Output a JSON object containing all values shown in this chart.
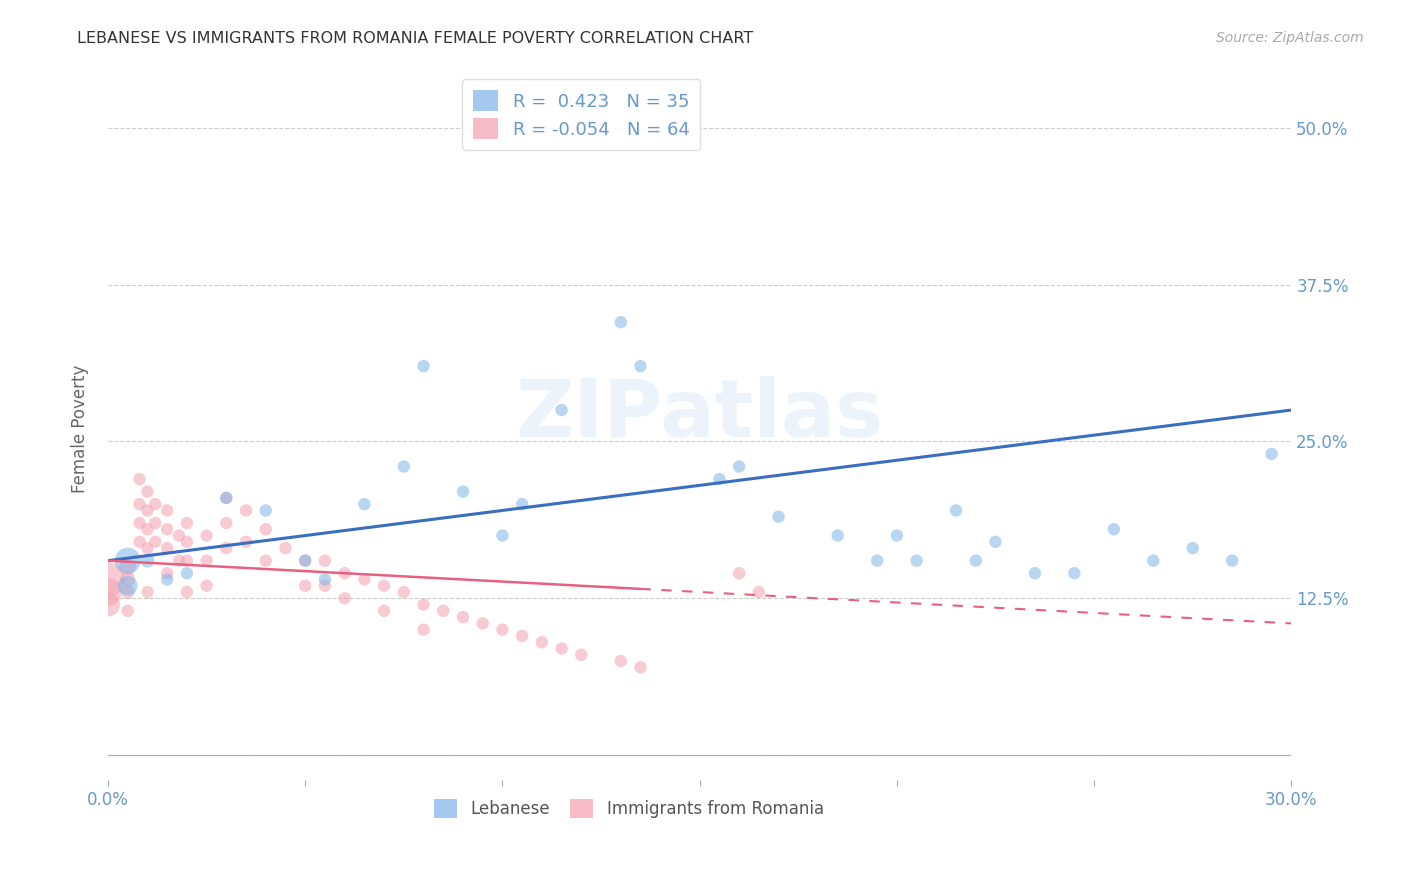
{
  "title": "LEBANESE VS IMMIGRANTS FROM ROMANIA FEMALE POVERTY CORRELATION CHART",
  "source": "Source: ZipAtlas.com",
  "ylabel": "Female Poverty",
  "xlim": [
    0.0,
    0.3
  ],
  "ylim": [
    -0.02,
    0.54
  ],
  "xticks": [
    0.0,
    0.05,
    0.1,
    0.15,
    0.2,
    0.25,
    0.3
  ],
  "xtick_labels": [
    "0.0%",
    "",
    "",
    "",
    "",
    "",
    "30.0%"
  ],
  "yticks": [
    0.0,
    0.125,
    0.25,
    0.375,
    0.5
  ],
  "ytick_labels": [
    "",
    "12.5%",
    "25.0%",
    "37.5%",
    "50.0%"
  ],
  "background_color": "#ffffff",
  "grid_color": "#cccccc",
  "title_color": "#333333",
  "axis_color": "#6699cc",
  "legend1_R": "0.423",
  "legend1_N": "35",
  "legend2_R": "-0.054",
  "legend2_N": "64",
  "blue_color": "#7fb3e8",
  "pink_color": "#f4a0b0",
  "blue_line_color": "#3a6fbf",
  "pink_line_color": "#e86080",
  "watermark": "ZIPatlas",
  "blue_scatter_x": [
    0.005,
    0.005,
    0.01,
    0.015,
    0.02,
    0.03,
    0.04,
    0.05,
    0.055,
    0.065,
    0.075,
    0.08,
    0.09,
    0.1,
    0.105,
    0.115,
    0.13,
    0.135,
    0.155,
    0.16,
    0.17,
    0.185,
    0.195,
    0.2,
    0.205,
    0.215,
    0.22,
    0.225,
    0.235,
    0.245,
    0.255,
    0.265,
    0.275,
    0.285,
    0.295
  ],
  "blue_scatter_y": [
    0.155,
    0.135,
    0.155,
    0.14,
    0.145,
    0.205,
    0.195,
    0.155,
    0.14,
    0.2,
    0.23,
    0.31,
    0.21,
    0.175,
    0.2,
    0.275,
    0.345,
    0.31,
    0.22,
    0.23,
    0.19,
    0.175,
    0.155,
    0.175,
    0.155,
    0.195,
    0.155,
    0.17,
    0.145,
    0.145,
    0.18,
    0.155,
    0.165,
    0.155,
    0.24
  ],
  "blue_scatter_size": [
    350,
    200,
    100,
    80,
    80,
    80,
    80,
    80,
    80,
    80,
    80,
    80,
    80,
    80,
    80,
    80,
    80,
    80,
    80,
    80,
    80,
    80,
    80,
    80,
    80,
    80,
    80,
    80,
    80,
    80,
    80,
    80,
    80,
    80,
    80
  ],
  "pink_scatter_x": [
    0.0,
    0.0,
    0.0,
    0.005,
    0.005,
    0.005,
    0.005,
    0.008,
    0.008,
    0.008,
    0.008,
    0.01,
    0.01,
    0.01,
    0.01,
    0.01,
    0.012,
    0.012,
    0.012,
    0.015,
    0.015,
    0.015,
    0.015,
    0.018,
    0.018,
    0.02,
    0.02,
    0.02,
    0.02,
    0.025,
    0.025,
    0.025,
    0.03,
    0.03,
    0.03,
    0.035,
    0.035,
    0.04,
    0.04,
    0.045,
    0.05,
    0.05,
    0.055,
    0.055,
    0.06,
    0.06,
    0.065,
    0.07,
    0.07,
    0.075,
    0.08,
    0.08,
    0.085,
    0.09,
    0.095,
    0.1,
    0.105,
    0.11,
    0.115,
    0.12,
    0.13,
    0.135,
    0.16,
    0.165
  ],
  "pink_scatter_y": [
    0.14,
    0.13,
    0.12,
    0.15,
    0.14,
    0.13,
    0.115,
    0.22,
    0.2,
    0.185,
    0.17,
    0.21,
    0.195,
    0.18,
    0.165,
    0.13,
    0.2,
    0.185,
    0.17,
    0.195,
    0.18,
    0.165,
    0.145,
    0.175,
    0.155,
    0.185,
    0.17,
    0.155,
    0.13,
    0.175,
    0.155,
    0.135,
    0.205,
    0.185,
    0.165,
    0.195,
    0.17,
    0.18,
    0.155,
    0.165,
    0.155,
    0.135,
    0.155,
    0.135,
    0.145,
    0.125,
    0.14,
    0.135,
    0.115,
    0.13,
    0.12,
    0.1,
    0.115,
    0.11,
    0.105,
    0.1,
    0.095,
    0.09,
    0.085,
    0.08,
    0.075,
    0.07,
    0.145,
    0.13
  ],
  "pink_scatter_size": [
    600,
    400,
    300,
    150,
    120,
    100,
    80,
    80,
    80,
    80,
    80,
    80,
    80,
    80,
    80,
    80,
    80,
    80,
    80,
    80,
    80,
    80,
    80,
    80,
    80,
    80,
    80,
    80,
    80,
    80,
    80,
    80,
    80,
    80,
    80,
    80,
    80,
    80,
    80,
    80,
    80,
    80,
    80,
    80,
    80,
    80,
    80,
    80,
    80,
    80,
    80,
    80,
    80,
    80,
    80,
    80,
    80,
    80,
    80,
    80,
    80,
    80,
    80,
    80
  ],
  "blue_trend_x0": 0.0,
  "blue_trend_y0": 0.155,
  "blue_trend_x1": 0.3,
  "blue_trend_y1": 0.275,
  "pink_trend_x0": 0.0,
  "pink_trend_y0": 0.155,
  "pink_trend_x1": 0.3,
  "pink_trend_y1": 0.105
}
